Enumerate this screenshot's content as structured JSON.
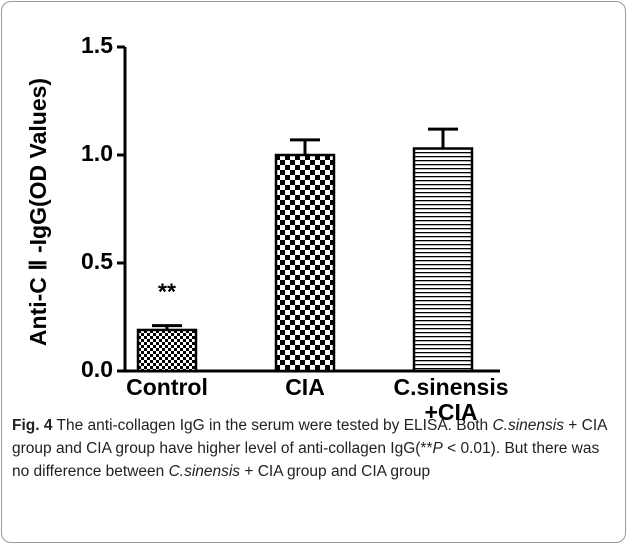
{
  "chart_data": {
    "type": "bar",
    "ylabel": "Anti-C Ⅱ -IgG(OD Values)",
    "categories": [
      "Control",
      "CIA",
      "C.sinensis\n+CIA"
    ],
    "values": [
      0.19,
      1.0,
      1.03
    ],
    "errors": [
      0.02,
      0.07,
      0.09
    ],
    "annotations": [
      {
        "category": 0,
        "text": "**"
      }
    ],
    "ylim": [
      0,
      1.5
    ],
    "yticks": [
      {
        "value": 0,
        "label": "0.0"
      },
      0.5,
      {
        "value": 1,
        "label": "1.0"
      },
      1.5
    ],
    "color": "#000000"
  },
  "caption": {
    "label": "Fig. 4",
    "parts": [
      "The anti-collagen IgG in the serum were tested by ELISA. Both ",
      "C.sinensis",
      " + CIA group and CIA group have higher level of anti-collagen IgG(**",
      "P",
      " < 0.01). But there was no difference between ",
      "C.sinensis",
      " + CIA group and CIA group"
    ]
  }
}
